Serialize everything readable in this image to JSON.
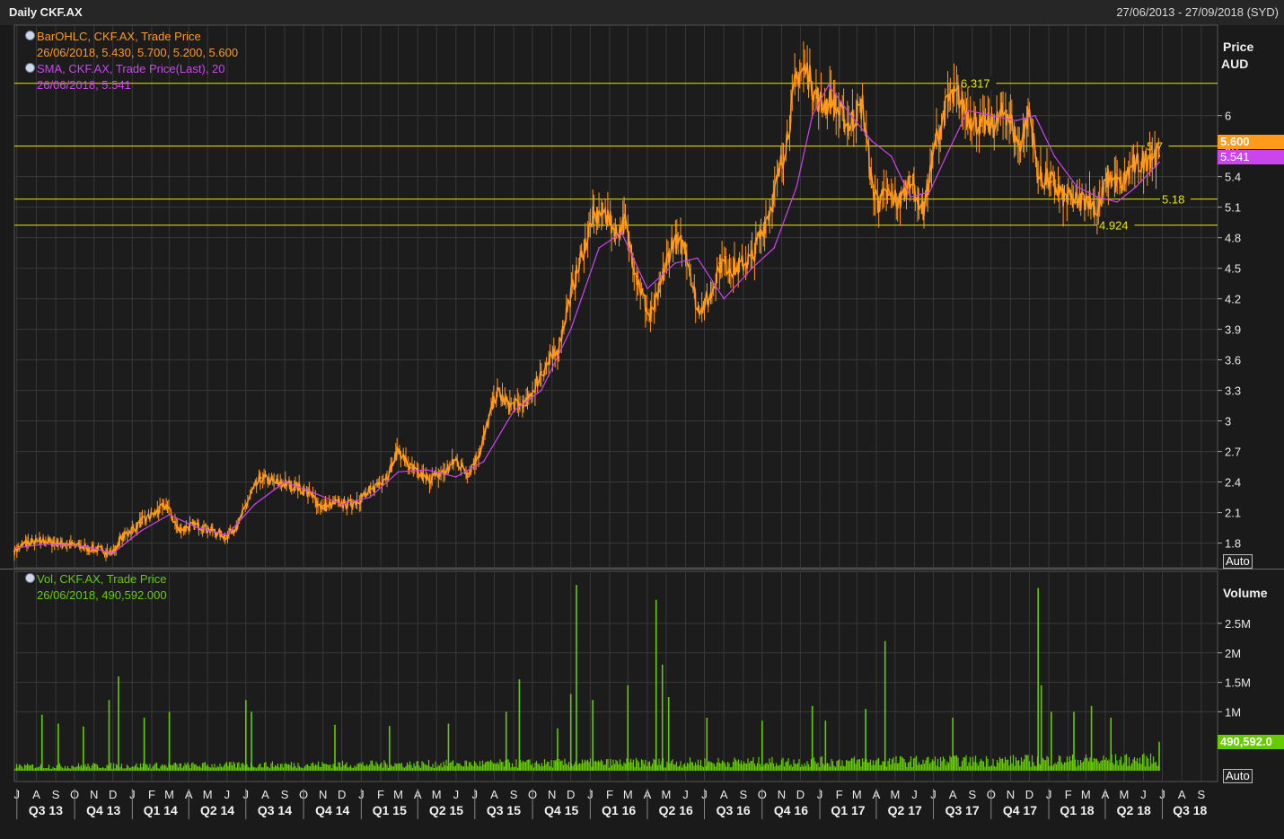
{
  "header": {
    "title": "Daily CKF.AX",
    "date_range": "27/06/2013 - 27/09/2018 (SYD)"
  },
  "legend": {
    "ohlc_name": "BarOHLC, CKF.AX, Trade Price",
    "ohlc_values": "26/06/2018, 5.430, 5.700, 5.200, 5.600",
    "sma_name": "SMA, CKF.AX, Trade Price(Last),  20",
    "sma_values": "26/06/2018, 5.541",
    "vol_name": "Vol, CKF.AX, Trade Price",
    "vol_values": "26/06/2018, 490,592.000"
  },
  "axes": {
    "price_title": "Price",
    "price_unit": "AUD",
    "volume_title": "Volume",
    "auto_label": "Auto",
    "last_price_label": "5.600",
    "last_sma_label": "5.541",
    "last_volume_label": "490,592.0"
  },
  "colors": {
    "price_series": "#ff9a1a",
    "sma_series": "#cc44ee",
    "volume_series": "#66cc00",
    "reference_lines": "#e8e800",
    "grid": "#383838",
    "background": "#1a1a1a"
  },
  "chart_data": [
    {
      "type": "line",
      "title": "Daily CKF.AX",
      "subtitle": "27/06/2013 - 27/09/2018 (SYD)",
      "ylabel": "Price AUD",
      "ylim": [
        1.62,
        6.8
      ],
      "yticks": [
        1.8,
        2.1,
        2.4,
        2.7,
        3,
        3.3,
        3.6,
        3.9,
        4.2,
        4.5,
        4.8,
        5.1,
        5.4,
        5.7,
        6
      ],
      "ytick_labels": [
        "1.8",
        "2.1",
        "2.4",
        "2.7",
        "3",
        "3.3",
        "3.6",
        "3.9",
        "4.2",
        "4.5",
        "4.8",
        "5.1",
        "5.4",
        "5.7",
        "6"
      ],
      "xlim": [
        "2013-06-27",
        "2018-09-27"
      ],
      "x_month_ticks": [
        "2013-07-01",
        "2013-08-01",
        "2013-09-01",
        "2013-10-01",
        "2013-11-01",
        "2013-12-01",
        "2014-01-01",
        "2014-02-01",
        "2014-03-01",
        "2014-04-01",
        "2014-05-01",
        "2014-06-01",
        "2014-07-01",
        "2014-08-01",
        "2014-09-01",
        "2014-10-01",
        "2014-11-01",
        "2014-12-01",
        "2015-01-01",
        "2015-02-01",
        "2015-03-01",
        "2015-04-01",
        "2015-05-01",
        "2015-06-01",
        "2015-07-01",
        "2015-08-01",
        "2015-09-01",
        "2015-10-01",
        "2015-11-01",
        "2015-12-01",
        "2016-01-01",
        "2016-02-01",
        "2016-03-01",
        "2016-04-01",
        "2016-05-01",
        "2016-06-01",
        "2016-07-01",
        "2016-08-01",
        "2016-09-01",
        "2016-10-01",
        "2016-11-01",
        "2016-12-01",
        "2017-01-01",
        "2017-02-01",
        "2017-03-01",
        "2017-04-01",
        "2017-05-01",
        "2017-06-01",
        "2017-07-01",
        "2017-08-01",
        "2017-09-01",
        "2017-10-01",
        "2017-11-01",
        "2017-12-01",
        "2018-01-01",
        "2018-02-01",
        "2018-03-01",
        "2018-04-01",
        "2018-05-01",
        "2018-06-01",
        "2018-07-01",
        "2018-08-01",
        "2018-09-01"
      ],
      "x_month_labels": [
        "J",
        "A",
        "S",
        "O",
        "N",
        "D",
        "J",
        "F",
        "M",
        "A",
        "M",
        "J",
        "J",
        "A",
        "S",
        "O",
        "N",
        "D",
        "J",
        "F",
        "M",
        "A",
        "M",
        "J",
        "J",
        "A",
        "S",
        "O",
        "N",
        "D",
        "J",
        "F",
        "M",
        "A",
        "M",
        "J",
        "J",
        "A",
        "S",
        "O",
        "N",
        "D",
        "J",
        "F",
        "M",
        "A",
        "M",
        "J",
        "J",
        "A",
        "S",
        "O",
        "N",
        "D",
        "J",
        "F",
        "M",
        "A",
        "M",
        "J",
        "J",
        "A",
        "S"
      ],
      "x_quarter_labels": [
        {
          "label": "Q3 13",
          "start": "2013-07-01"
        },
        {
          "label": "Q4 13",
          "start": "2013-10-01"
        },
        {
          "label": "Q1 14",
          "start": "2014-01-01"
        },
        {
          "label": "Q2 14",
          "start": "2014-04-01"
        },
        {
          "label": "Q3 14",
          "start": "2014-07-01"
        },
        {
          "label": "Q4 14",
          "start": "2014-10-01"
        },
        {
          "label": "Q1 15",
          "start": "2015-01-01"
        },
        {
          "label": "Q2 15",
          "start": "2015-04-01"
        },
        {
          "label": "Q3 15",
          "start": "2015-07-01"
        },
        {
          "label": "Q4 15",
          "start": "2015-10-01"
        },
        {
          "label": "Q1 16",
          "start": "2016-01-01"
        },
        {
          "label": "Q2 16",
          "start": "2016-04-01"
        },
        {
          "label": "Q3 16",
          "start": "2016-07-01"
        },
        {
          "label": "Q4 16",
          "start": "2016-10-01"
        },
        {
          "label": "Q1 17",
          "start": "2017-01-01"
        },
        {
          "label": "Q2 17",
          "start": "2017-04-01"
        },
        {
          "label": "Q3 17",
          "start": "2017-07-01"
        },
        {
          "label": "Q4 17",
          "start": "2017-10-01"
        },
        {
          "label": "Q1 18",
          "start": "2018-01-01"
        },
        {
          "label": "Q2 18",
          "start": "2018-04-01"
        },
        {
          "label": "Q3 18",
          "start": "2018-07-01"
        }
      ],
      "reference_lines": [
        {
          "value": 6.317,
          "label": "6.317"
        },
        {
          "value": 5.7,
          "label": "5.7"
        },
        {
          "value": 5.18,
          "label": "5.18"
        },
        {
          "value": 4.924,
          "label": "4.924"
        }
      ],
      "series": [
        {
          "name": "BarOHLC, CKF.AX, Trade Price",
          "x": [
            "2013-06-27",
            "2013-07-15",
            "2013-08-15",
            "2013-09-15",
            "2013-10-15",
            "2013-11-15",
            "2013-12-01",
            "2013-12-15",
            "2014-01-15",
            "2014-02-10",
            "2014-02-25",
            "2014-03-15",
            "2014-04-15",
            "2014-05-15",
            "2014-06-01",
            "2014-06-20",
            "2014-07-10",
            "2014-07-25",
            "2014-08-20",
            "2014-09-20",
            "2014-10-15",
            "2014-11-01",
            "2014-11-20",
            "2014-12-15",
            "2015-01-15",
            "2015-02-15",
            "2015-03-01",
            "2015-03-20",
            "2015-04-15",
            "2015-05-15",
            "2015-06-01",
            "2015-06-20",
            "2015-07-10",
            "2015-08-05",
            "2015-08-25",
            "2015-09-20",
            "2015-10-15",
            "2015-11-10",
            "2015-11-25",
            "2015-12-15",
            "2016-01-05",
            "2016-01-25",
            "2016-02-10",
            "2016-02-25",
            "2016-03-15",
            "2016-04-05",
            "2016-04-20",
            "2016-05-10",
            "2016-06-01",
            "2016-06-20",
            "2016-07-10",
            "2016-07-25",
            "2016-08-20",
            "2016-09-15",
            "2016-10-05",
            "2016-10-20",
            "2016-11-10",
            "2016-11-25",
            "2016-12-10",
            "2016-12-25",
            "2017-01-05",
            "2017-01-20",
            "2017-02-15",
            "2017-03-10",
            "2017-03-25",
            "2017-04-05",
            "2017-04-20",
            "2017-05-10",
            "2017-05-25",
            "2017-06-15",
            "2017-07-05",
            "2017-07-25",
            "2017-08-10",
            "2017-08-25",
            "2017-09-15",
            "2017-10-05",
            "2017-10-25",
            "2017-11-15",
            "2017-12-01",
            "2017-12-15",
            "2018-01-05",
            "2018-01-25",
            "2018-02-15",
            "2018-03-05",
            "2018-03-20",
            "2018-04-05",
            "2018-04-25",
            "2018-05-15",
            "2018-06-01",
            "2018-06-15",
            "2018-06-20",
            "2018-06-26"
          ],
          "values": [
            1.72,
            1.8,
            1.82,
            1.79,
            1.76,
            1.73,
            1.7,
            1.86,
            2.0,
            2.11,
            2.17,
            1.93,
            1.98,
            1.9,
            1.87,
            2.0,
            2.3,
            2.44,
            2.39,
            2.36,
            2.26,
            2.14,
            2.19,
            2.18,
            2.3,
            2.5,
            2.72,
            2.54,
            2.42,
            2.5,
            2.62,
            2.48,
            2.72,
            3.28,
            3.15,
            3.15,
            3.48,
            3.68,
            4.1,
            4.55,
            5.0,
            5.05,
            4.85,
            4.95,
            4.42,
            4.0,
            4.28,
            4.75,
            4.72,
            4.1,
            4.2,
            4.55,
            4.5,
            4.6,
            4.95,
            5.2,
            5.8,
            6.4,
            6.45,
            6.22,
            6.1,
            6.15,
            5.9,
            6.1,
            5.3,
            5.15,
            5.22,
            5.15,
            5.4,
            5.05,
            5.75,
            6.15,
            6.2,
            6.0,
            5.9,
            5.9,
            6.05,
            5.7,
            6.05,
            5.4,
            5.35,
            5.2,
            5.15,
            5.2,
            5.05,
            5.4,
            5.3,
            5.5,
            5.55,
            5.62,
            5.62,
            5.6
          ]
        },
        {
          "name": "SMA, CKF.AX, Trade Price(Last),  20",
          "x": [
            "2013-06-27",
            "2013-08-15",
            "2013-10-15",
            "2013-12-01",
            "2014-01-15",
            "2014-03-01",
            "2014-04-15",
            "2014-06-01",
            "2014-07-15",
            "2014-09-01",
            "2014-10-15",
            "2014-12-01",
            "2015-01-15",
            "2015-03-01",
            "2015-04-15",
            "2015-06-01",
            "2015-07-15",
            "2015-09-01",
            "2015-10-15",
            "2015-12-01",
            "2016-01-15",
            "2016-02-20",
            "2016-04-01",
            "2016-05-15",
            "2016-06-20",
            "2016-08-01",
            "2016-09-15",
            "2016-10-20",
            "2016-11-25",
            "2016-12-20",
            "2017-01-15",
            "2017-02-20",
            "2017-03-25",
            "2017-04-25",
            "2017-05-25",
            "2017-06-25",
            "2017-07-25",
            "2017-08-25",
            "2017-10-01",
            "2017-11-10",
            "2017-12-10",
            "2018-01-10",
            "2018-02-15",
            "2018-03-20",
            "2018-04-20",
            "2018-05-20",
            "2018-06-26"
          ],
          "values": [
            1.75,
            1.79,
            1.77,
            1.7,
            1.92,
            2.08,
            1.95,
            1.88,
            2.18,
            2.4,
            2.3,
            2.18,
            2.25,
            2.5,
            2.52,
            2.45,
            2.6,
            3.1,
            3.3,
            3.9,
            4.7,
            4.85,
            4.3,
            4.55,
            4.6,
            4.2,
            4.5,
            4.7,
            5.3,
            6.0,
            6.3,
            6.0,
            5.75,
            5.6,
            5.2,
            5.25,
            5.65,
            6.05,
            6.0,
            5.95,
            6.0,
            5.6,
            5.3,
            5.2,
            5.15,
            5.3,
            5.541
          ]
        }
      ]
    },
    {
      "type": "bar",
      "title": "Vol, CKF.AX, Trade Price",
      "ylabel": "Volume",
      "ylim": [
        0,
        3200000
      ],
      "yticks": [
        1000000,
        1500000,
        2000000,
        2500000
      ],
      "ytick_labels": [
        "1M",
        "1.5M",
        "2M",
        "2.5M"
      ],
      "base_level": 120000,
      "series": [
        {
          "name": "Vol, CKF.AX, Trade Price",
          "x": [
            "2013-08-10",
            "2013-09-05",
            "2013-10-15",
            "2013-11-25",
            "2013-12-10",
            "2014-01-20",
            "2014-03-01",
            "2014-07-01",
            "2014-07-10",
            "2014-11-20",
            "2015-02-15",
            "2015-05-20",
            "2015-08-20",
            "2015-09-10",
            "2015-11-10",
            "2015-12-01",
            "2015-12-10",
            "2016-01-05",
            "2016-03-01",
            "2016-04-15",
            "2016-04-25",
            "2016-05-05",
            "2016-07-05",
            "2016-10-01",
            "2016-12-20",
            "2017-01-10",
            "2017-03-15",
            "2017-04-15",
            "2017-08-01",
            "2017-12-15",
            "2017-12-20",
            "2018-01-05",
            "2018-02-10",
            "2018-03-10",
            "2018-04-10",
            "2018-06-26"
          ],
          "values": [
            950000,
            800000,
            750000,
            1200000,
            1600000,
            900000,
            1000000,
            1200000,
            1000000,
            780000,
            760000,
            800000,
            1000000,
            1550000,
            720000,
            1300000,
            3150000,
            1200000,
            1450000,
            2900000,
            1800000,
            1250000,
            900000,
            850000,
            1100000,
            850000,
            1050000,
            2200000,
            900000,
            3100000,
            1450000,
            1000000,
            1000000,
            1100000,
            900000,
            490592
          ]
        }
      ],
      "last_value": 490592
    }
  ]
}
